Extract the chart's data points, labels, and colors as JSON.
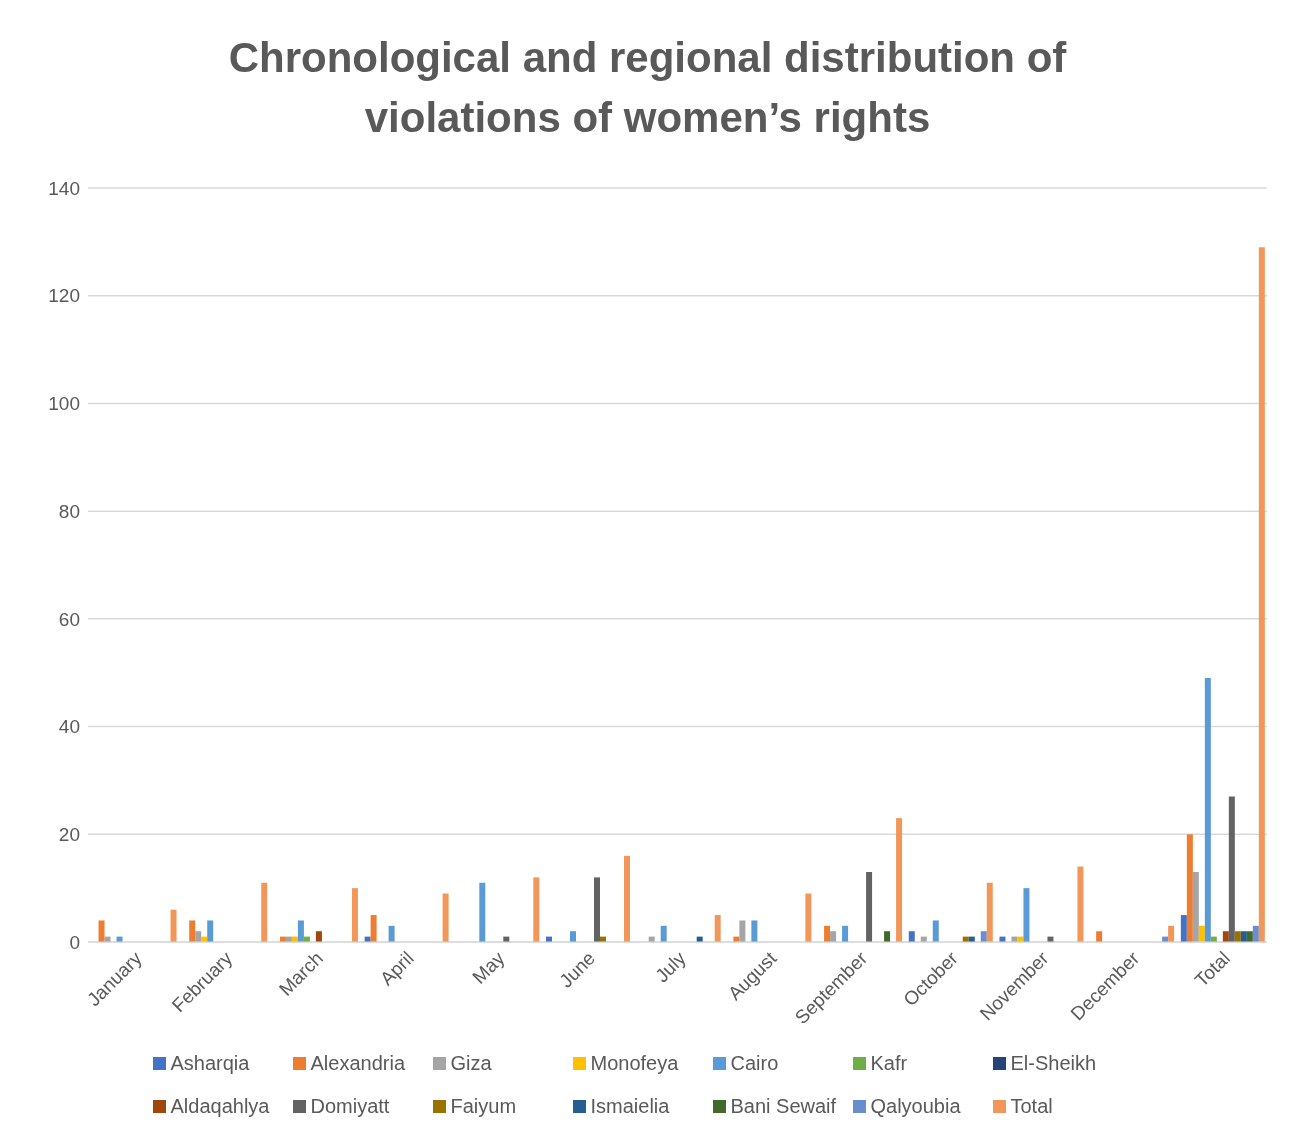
{
  "chart_data": {
    "type": "bar",
    "title": "Chronological and regional distribution of violations of women’s rights",
    "categories": [
      "January",
      "February",
      "March",
      "April",
      "May",
      "June",
      "July",
      "August",
      "September",
      "October",
      "November",
      "December",
      "Total"
    ],
    "series": [
      {
        "name": "Asharqia",
        "color": "#4472c4",
        "values": [
          0,
          0,
          0,
          1,
          0,
          1,
          0,
          0,
          0,
          2,
          1,
          0,
          5
        ]
      },
      {
        "name": "Alexandria",
        "color": "#ed7d31",
        "values": [
          4,
          4,
          1,
          5,
          0,
          0,
          0,
          1,
          3,
          0,
          0,
          2,
          20
        ]
      },
      {
        "name": "Giza",
        "color": "#a5a5a5",
        "values": [
          1,
          2,
          1,
          0,
          0,
          0,
          1,
          4,
          2,
          1,
          1,
          0,
          13
        ]
      },
      {
        "name": "Monofeya",
        "color": "#ffc000",
        "values": [
          0,
          1,
          1,
          0,
          0,
          0,
          0,
          0,
          0,
          0,
          1,
          0,
          3
        ]
      },
      {
        "name": "Cairo",
        "color": "#5b9bd5",
        "values": [
          1,
          4,
          4,
          3,
          11,
          2,
          3,
          4,
          3,
          4,
          10,
          0,
          49
        ]
      },
      {
        "name": "Kafr",
        "color": "#70ad47",
        "values": [
          0,
          0,
          1,
          0,
          0,
          0,
          0,
          0,
          0,
          0,
          0,
          0,
          1
        ]
      },
      {
        "name": "El-Sheikh",
        "color": "#264478",
        "values": [
          0,
          0,
          0,
          0,
          0,
          0,
          0,
          0,
          0,
          0,
          0,
          0,
          0
        ]
      },
      {
        "name": "Aldaqahlya",
        "color": "#9e480e",
        "values": [
          0,
          0,
          2,
          0,
          0,
          0,
          0,
          0,
          0,
          0,
          0,
          0,
          2
        ]
      },
      {
        "name": "Domiyatt",
        "color": "#636363",
        "values": [
          0,
          0,
          0,
          0,
          1,
          12,
          0,
          0,
          13,
          0,
          1,
          0,
          27
        ]
      },
      {
        "name": "Faiyum",
        "color": "#997300",
        "values": [
          0,
          0,
          0,
          0,
          0,
          1,
          0,
          0,
          0,
          1,
          0,
          0,
          2
        ]
      },
      {
        "name": "Ismaielia",
        "color": "#255e91",
        "values": [
          0,
          0,
          0,
          0,
          0,
          0,
          1,
          0,
          0,
          1,
          0,
          0,
          2
        ]
      },
      {
        "name": "Bani Sewaif",
        "color": "#43682b",
        "values": [
          0,
          0,
          0,
          0,
          0,
          0,
          0,
          0,
          2,
          0,
          0,
          0,
          2
        ]
      },
      {
        "name": "Qalyoubia",
        "color": "#698ed0",
        "values": [
          0,
          0,
          0,
          0,
          0,
          0,
          0,
          0,
          0,
          2,
          0,
          1,
          3
        ]
      },
      {
        "name": "Total",
        "color": "#f1975a",
        "values": [
          6,
          11,
          10,
          9,
          12,
          16,
          5,
          9,
          23,
          11,
          14,
          3,
          129
        ]
      }
    ],
    "ylim": [
      0,
      140
    ],
    "yticks": [
      0,
      20,
      40,
      60,
      80,
      100,
      120,
      140
    ],
    "grid": "y",
    "legend": "bottom"
  }
}
